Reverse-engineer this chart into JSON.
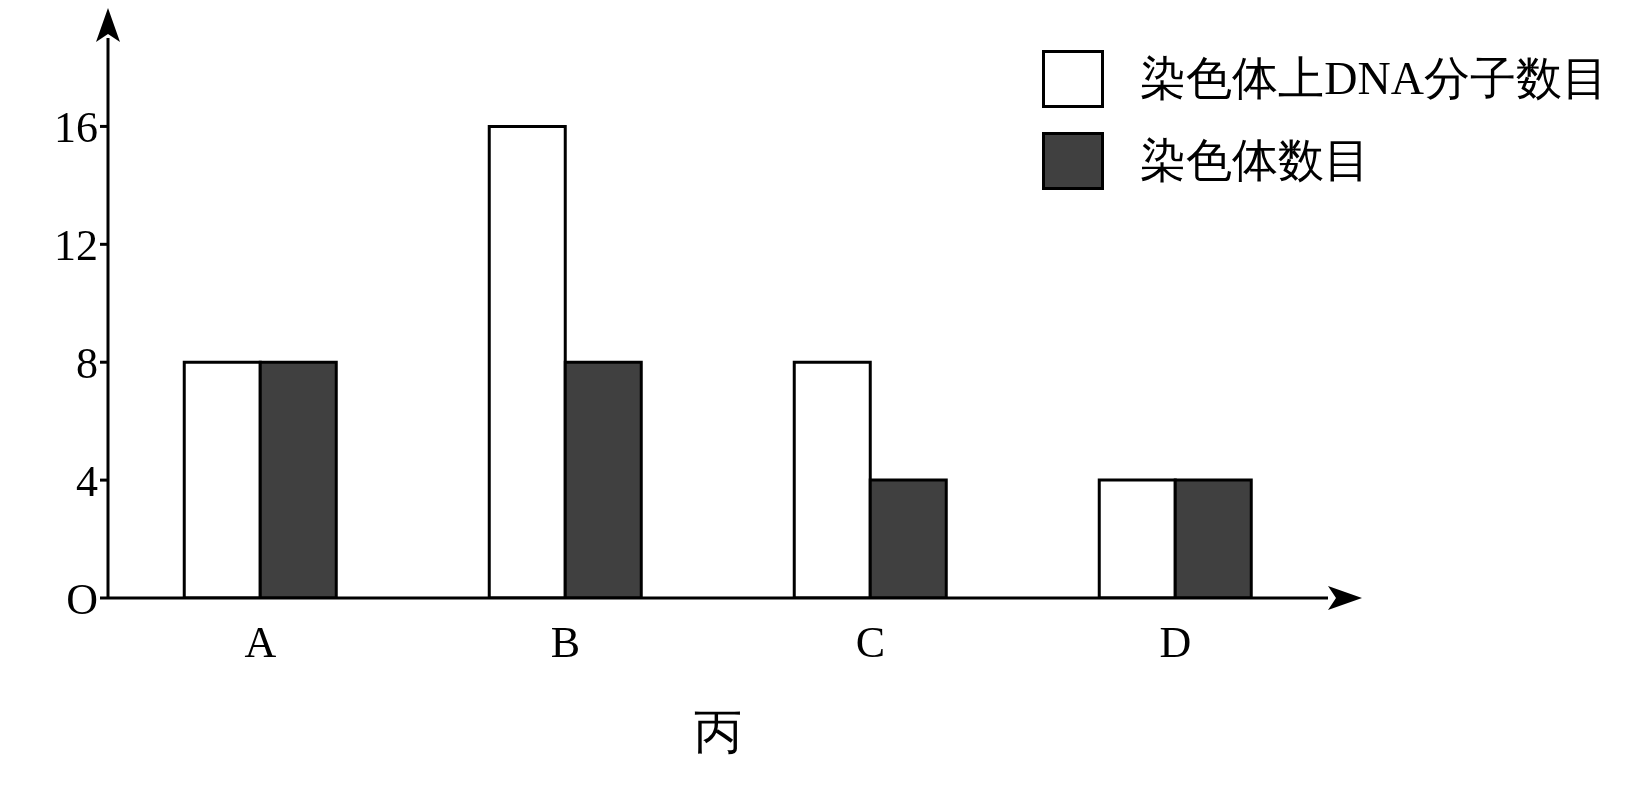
{
  "chart_data": {
    "type": "bar",
    "xlabel": "丙",
    "categories": [
      "A",
      "B",
      "C",
      "D"
    ],
    "series": [
      {
        "name": "染色体上DNA分子数目",
        "color": "#ffffff",
        "values": [
          8,
          16,
          8,
          4
        ]
      },
      {
        "name": "染色体数目",
        "color": "#404040",
        "values": [
          8,
          8,
          4,
          4
        ]
      }
    ],
    "ylim": [
      0,
      19
    ],
    "yticks": [
      {
        "value": 0,
        "label": "O"
      },
      4,
      8,
      12,
      16
    ],
    "grid": false,
    "legend": "top right"
  }
}
